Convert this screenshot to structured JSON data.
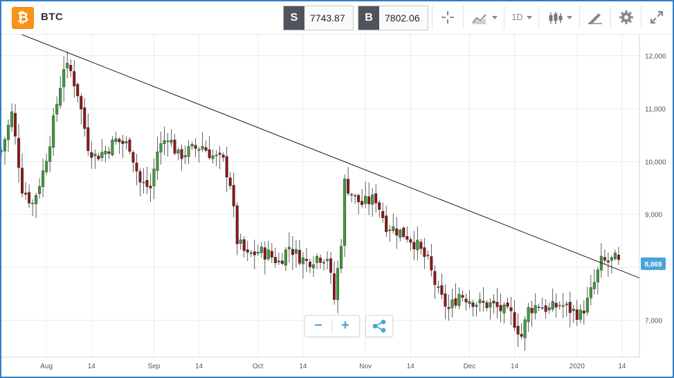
{
  "header": {
    "coin_symbol_glyph": "₿",
    "symbol": "BTC",
    "sell_label": "S",
    "sell_price": "7743.87",
    "buy_label": "B",
    "buy_price": "7802.06",
    "timeframe": "1D",
    "tools": [
      "crosshair-icon",
      "chart-type-icon",
      "timeframe-dropdown",
      "candles-icon",
      "draw-icon",
      "gear-icon",
      "expand-icon"
    ]
  },
  "controls": {
    "zoom_out": "−",
    "zoom_in": "+",
    "share_icon": "share-icon"
  },
  "colors": {
    "up": "#3d9c3d",
    "down": "#8b1a1a",
    "accent": "#2f7fc9",
    "price_tag": "#4aa3d8"
  },
  "chart_data": {
    "type": "candlestick",
    "title": "BTC",
    "ylim": [
      6300,
      12400
    ],
    "y_ticks": [
      7000,
      8000,
      9000,
      10000,
      11000,
      12000
    ],
    "y_tick_labels": [
      "7,000",
      "8,000",
      "9,000",
      "10,000",
      "11,000",
      "12,000"
    ],
    "x_ticks": [
      "Aug",
      "14",
      "Sep",
      "14",
      "Oct",
      "14",
      "Nov",
      "14",
      "Dec",
      "14",
      "2020",
      "14"
    ],
    "x_tick_days": [
      0,
      13,
      31,
      44,
      61,
      74,
      92,
      105,
      122,
      135,
      153,
      166
    ],
    "xlim_days": [
      -13,
      171
    ],
    "current_price_label": "8,069",
    "current_price": 8069,
    "trendline": {
      "from": {
        "day": -9,
        "price": 12450
      },
      "to": {
        "day": 171,
        "price": 7800
      }
    },
    "key_closes": [
      {
        "date": "Aug 2019",
        "close": 10300
      },
      {
        "date": "Aug 6 2019",
        "close": 11800
      },
      {
        "date": "Sep 1 2019",
        "close": 9600
      },
      {
        "date": "Sep 24 2019",
        "close": 8500
      },
      {
        "date": "Oct 23 2019",
        "close": 7400
      },
      {
        "date": "Oct 25 2019",
        "close": 9300
      },
      {
        "date": "Nov 22 2019",
        "close": 7200
      },
      {
        "date": "Dec 17 2019",
        "close": 6600
      },
      {
        "date": "Jan 8 2020",
        "close": 7300
      },
      {
        "date": "Jan 14 2020",
        "close": 8100
      }
    ]
  }
}
